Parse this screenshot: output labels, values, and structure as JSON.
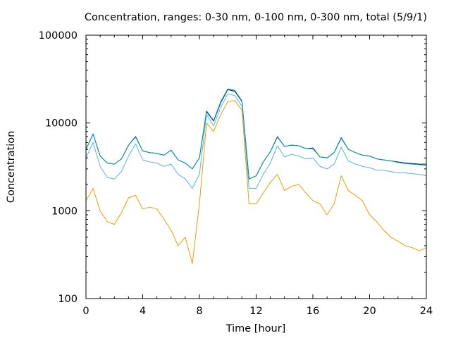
{
  "chart_data": {
    "type": "line",
    "title": "Concentration, ranges: 0-30 nm, 0-100 nm, 0-300 nm, total (5/9/1)",
    "xlabel": "Time [hour]",
    "ylabel": "Concentration",
    "xlim": [
      0,
      24
    ],
    "ylim": [
      100,
      100000
    ],
    "yscale": "log",
    "x_ticks": [
      0,
      4,
      8,
      12,
      16,
      20,
      24
    ],
    "x_tick_labels": [
      "0",
      "4",
      "8",
      "12",
      "16",
      "20",
      "24"
    ],
    "y_ticks": [
      100,
      1000,
      10000,
      100000
    ],
    "y_tick_labels": [
      "100",
      "1000",
      "10000",
      "100000"
    ],
    "grid": false,
    "legend": "none",
    "x": [
      0,
      0.5,
      1,
      1.5,
      2,
      2.5,
      3,
      3.5,
      4,
      4.5,
      5,
      5.5,
      6,
      6.5,
      7,
      7.5,
      8,
      8.5,
      9,
      9.5,
      10,
      10.5,
      11,
      11.5,
      12,
      12.5,
      13,
      13.5,
      14,
      14.5,
      15,
      15.5,
      16,
      16.5,
      17,
      17.5,
      18,
      18.5,
      19,
      19.5,
      20,
      20.5,
      21,
      21.5,
      22,
      22.5,
      23,
      23.5,
      24
    ],
    "series": [
      {
        "color": "#000080",
        "values": [
          5000,
          7500,
          4200,
          3500,
          3400,
          3900,
          5600,
          7000,
          4800,
          4600,
          4500,
          4300,
          4900,
          3800,
          3500,
          3000,
          4000,
          13500,
          10500,
          17000,
          24000,
          23000,
          17500,
          2300,
          2500,
          3600,
          4700,
          7000,
          5400,
          5600,
          5500,
          5100,
          5200,
          4100,
          4000,
          4600,
          6800,
          5000,
          4600,
          4300,
          4200,
          3900,
          3800,
          3700,
          3600,
          3500,
          3450,
          3400,
          3400
        ]
      },
      {
        "color": "#00a0a0",
        "values": [
          5000,
          7500,
          4200,
          3500,
          3400,
          3900,
          5600,
          6900,
          4800,
          4600,
          4500,
          4300,
          4900,
          3800,
          3500,
          3000,
          4000,
          13800,
          10700,
          17500,
          24500,
          23500,
          17800,
          2300,
          2500,
          3600,
          4700,
          6900,
          5400,
          5600,
          5500,
          5100,
          5100,
          4100,
          4000,
          4600,
          6700,
          5000,
          4600,
          4300,
          4200,
          3900,
          3800,
          3700,
          3550,
          3450,
          3400,
          3350,
          3300
        ]
      },
      {
        "color": "#56b4e9",
        "values": [
          4000,
          6000,
          3200,
          2400,
          2300,
          2800,
          4200,
          5800,
          3800,
          3600,
          3500,
          3200,
          3400,
          2600,
          2300,
          1800,
          2600,
          12500,
          9300,
          15000,
          21500,
          20500,
          15500,
          1800,
          1800,
          2600,
          3500,
          5500,
          4100,
          4400,
          4200,
          3900,
          4000,
          3200,
          3000,
          3400,
          5300,
          3700,
          3400,
          3200,
          3100,
          2900,
          2900,
          2800,
          2700,
          2700,
          2650,
          2600,
          2500
        ]
      },
      {
        "color": "#e69f00",
        "values": [
          1300,
          1800,
          1000,
          750,
          700,
          950,
          1400,
          1500,
          1050,
          1100,
          1050,
          800,
          600,
          400,
          500,
          250,
          1200,
          10000,
          8000,
          12500,
          17500,
          18000,
          14000,
          1200,
          1200,
          1600,
          2100,
          2600,
          1700,
          1900,
          2000,
          1600,
          1300,
          1200,
          900,
          1200,
          2500,
          1700,
          1500,
          1300,
          900,
          750,
          600,
          500,
          450,
          400,
          380,
          350,
          380
        ]
      }
    ]
  }
}
